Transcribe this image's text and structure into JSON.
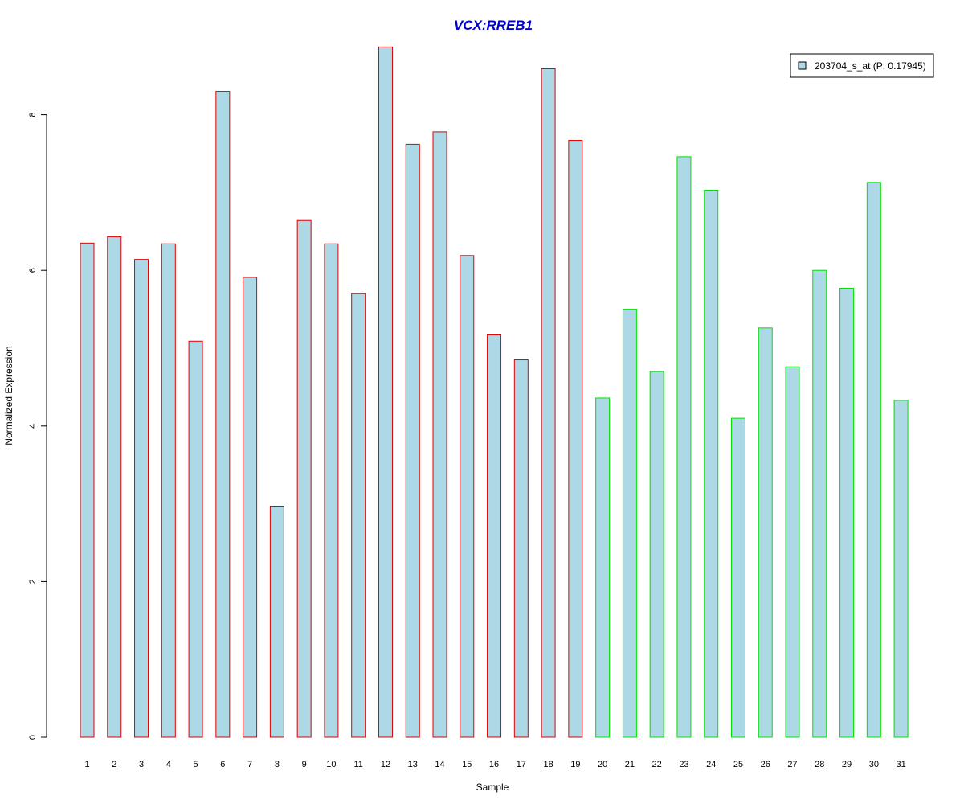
{
  "chart_data": {
    "type": "bar",
    "title": "VCX:RREB1",
    "xlabel": "Sample",
    "ylabel": "Normalized Expression",
    "ylim": [
      0,
      9
    ],
    "yticks": [
      0,
      2,
      4,
      6,
      8
    ],
    "categories": [
      "1",
      "2",
      "3",
      "4",
      "5",
      "6",
      "7",
      "8",
      "9",
      "10",
      "11",
      "12",
      "13",
      "14",
      "15",
      "16",
      "17",
      "18",
      "19",
      "20",
      "21",
      "22",
      "23",
      "24",
      "25",
      "26",
      "27",
      "28",
      "29",
      "30",
      "31"
    ],
    "series": [
      {
        "name": "203704_s_at (P: 0.17945)",
        "values": [
          6.35,
          6.43,
          6.14,
          6.34,
          5.09,
          8.3,
          5.91,
          2.97,
          6.64,
          6.34,
          5.7,
          8.87,
          7.62,
          7.78,
          6.19,
          5.17,
          4.85,
          8.59,
          7.67,
          4.36,
          5.5,
          4.7,
          7.46,
          7.03,
          4.1,
          5.26,
          4.76,
          6.0,
          5.77,
          7.13,
          4.33
        ]
      }
    ],
    "groups": [
      {
        "from": 1,
        "to": 19,
        "border_color": "#e00000"
      },
      {
        "from": 20,
        "to": 31,
        "border_color": "#00e000"
      }
    ],
    "fill_color": "#add8e6",
    "title_color": "#0000cc",
    "grid": false,
    "legend_position": "top-right"
  }
}
